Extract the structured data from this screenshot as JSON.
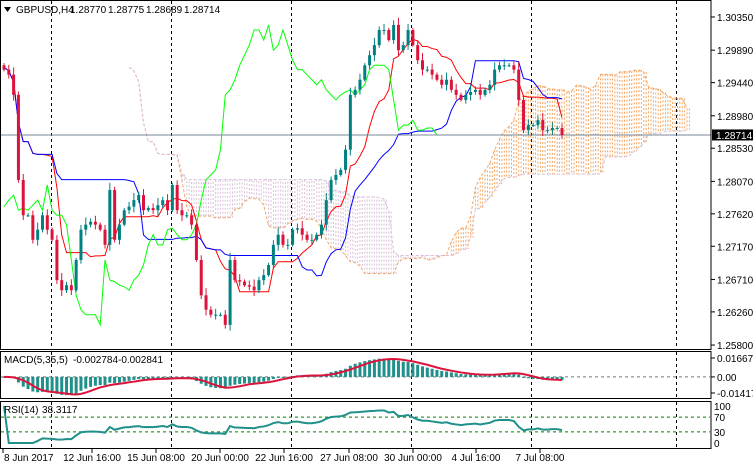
{
  "header": {
    "menu_icon": "triangle-down-icon",
    "symbol": "GBPUSD,H4",
    "open": "1.28770",
    "high": "1.28775",
    "low": "1.28689",
    "close": "1.28714"
  },
  "colors": {
    "bull_candle": "#008080",
    "bear_candle": "#dc143c",
    "tenkan": "#ff0000",
    "kijun": "#0000ff",
    "chikou": "#00ff00",
    "cloud_up": "#f4a460",
    "cloud_down": "#d8bfd8",
    "macd_hist": "#20908a",
    "macd_signal": "#dc143c",
    "rsi": "#20908a",
    "level": "#008000",
    "grid": "#000000",
    "price_line": "#778899"
  },
  "chart_data": [
    {
      "type": "candlestick",
      "symbol": "GBPUSD",
      "timeframe": "H4",
      "closes": [
        1.2962,
        1.2955,
        1.2927,
        1.2809,
        1.276,
        1.276,
        1.2726,
        1.274,
        1.276,
        1.274,
        1.2726,
        1.267,
        1.2656,
        1.2663,
        1.2656,
        1.2698,
        1.274,
        1.2747,
        1.2751,
        1.2747,
        1.274,
        1.2719,
        1.2795,
        1.2726,
        1.2747,
        1.2767,
        1.2772,
        1.2781,
        1.2788,
        1.2767,
        1.277,
        1.2767,
        1.2774,
        1.2781,
        1.2767,
        1.2802,
        1.2767,
        1.276,
        1.276,
        1.2747,
        1.2698,
        1.2649,
        1.2629,
        1.2622,
        1.2622,
        1.2622,
        1.2608,
        1.2698,
        1.267,
        1.2668,
        1.2663,
        1.2661,
        1.2656,
        1.267,
        1.2677,
        1.2691,
        1.2719,
        1.2733,
        1.2719,
        1.2719,
        1.274,
        1.2742,
        1.2733,
        1.2726,
        1.2726,
        1.2733,
        1.2747,
        1.2781,
        1.2809,
        1.2816,
        1.2823,
        1.2851,
        1.2927,
        1.2934,
        1.2948,
        1.2968,
        1.2982,
        1.2996,
        1.3017,
        1.3017,
        1.3003,
        1.3024,
        1.2989,
        1.2996,
        1.3017,
        1.2996,
        1.2975,
        1.2962,
        1.2962,
        1.2955,
        1.2948,
        1.2941,
        1.2948,
        1.2934,
        1.2927,
        1.292,
        1.2927,
        1.2931,
        1.2934,
        1.2927,
        1.2934,
        1.2941,
        1.2962,
        1.2968,
        1.2968,
        1.2968,
        1.2962,
        1.292,
        1.2878,
        1.2885,
        1.2885,
        1.2892,
        1.2878,
        1.2878,
        1.2881,
        1.2881,
        1.28714
      ],
      "last_price": 1.28714,
      "last_price_label": "1.28714",
      "ylim": [
        1.258,
        1.3058
      ],
      "y_ticks": [
        "1.30350",
        "1.29890",
        "1.29440",
        "1.28980",
        "1.28530",
        "1.28070",
        "1.27620",
        "1.27170",
        "1.26710",
        "1.26260",
        "1.25800"
      ],
      "x_tick_labels": [
        "8 Jun 2017",
        "12 Jun 16:00",
        "15 Jun 08:00",
        "20 Jun 00:00",
        "22 Jun 16:00",
        "27 Jun 08:00",
        "30 Jun 00:00",
        "4 Jul 16:00",
        "7 Jul 08:00"
      ],
      "indicator": "Ichimoku",
      "grid": "vertical dashed"
    },
    {
      "type": "bar",
      "label": "MACD(5,35,5)",
      "main_value": "-0.002784",
      "signal_value": "-0.002841",
      "y_ticks": [
        "0.016673",
        "0.00",
        "-0.014177"
      ],
      "ylim": [
        -0.014177,
        0.016673
      ]
    },
    {
      "type": "line",
      "label": "RSI(14)",
      "value": "38.3117",
      "levels": [
        70,
        30
      ],
      "y_ticks": [
        "100",
        "70",
        "30",
        "0"
      ],
      "ylim": [
        0,
        100
      ]
    }
  ]
}
